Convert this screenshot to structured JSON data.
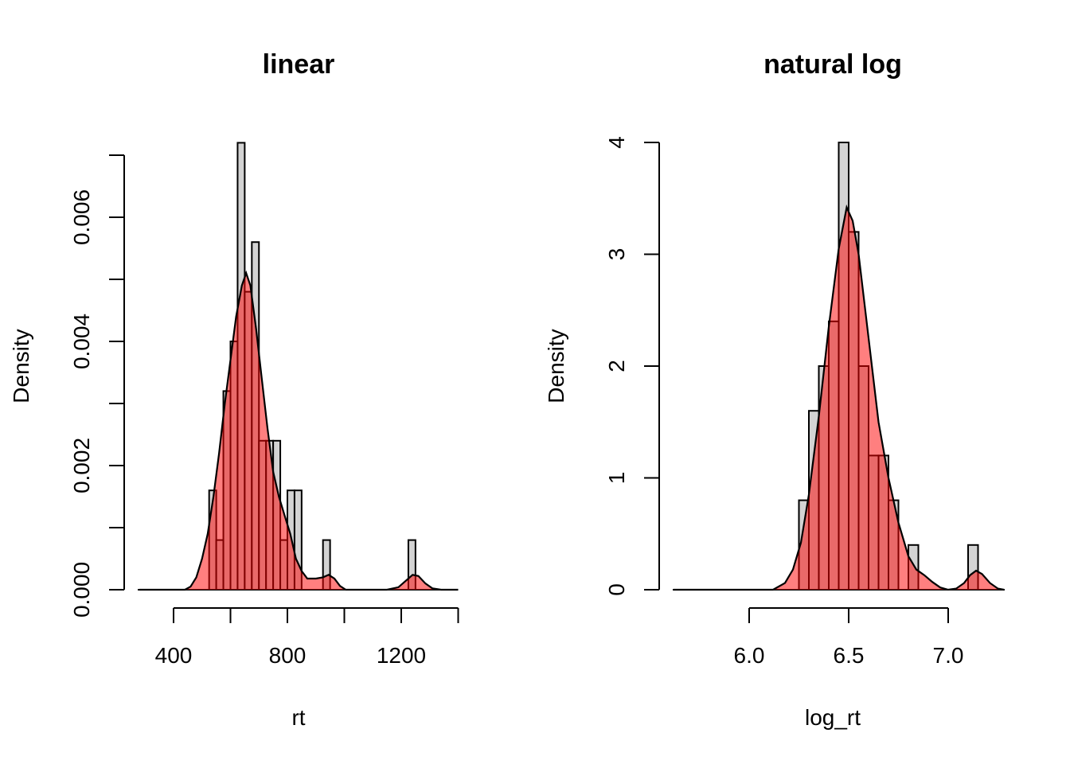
{
  "chart_data": [
    {
      "type": "bar",
      "subtype": "histogram-with-density",
      "title": "linear",
      "xlabel": "rt",
      "ylabel": "Density",
      "x_ticks": [
        400,
        600,
        800,
        1000,
        1200,
        1400
      ],
      "x_tick_labels": [
        "400",
        "800",
        "1200"
      ],
      "x_tick_label_values": [
        400,
        800,
        1200
      ],
      "y_ticks": [
        0,
        0.001,
        0.002,
        0.003,
        0.004,
        0.005,
        0.006,
        0.007
      ],
      "y_tick_labels": [
        "0.000",
        "0.002",
        "0.004",
        "0.006"
      ],
      "y_tick_label_values": [
        0,
        0.002,
        0.004,
        0.006
      ],
      "bin_width": 25,
      "bins": [
        {
          "start": 525,
          "density": 0.0016
        },
        {
          "start": 550,
          "density": 0.0008
        },
        {
          "start": 575,
          "density": 0.0032
        },
        {
          "start": 600,
          "density": 0.004
        },
        {
          "start": 625,
          "density": 0.0072
        },
        {
          "start": 650,
          "density": 0.0048
        },
        {
          "start": 675,
          "density": 0.0056
        },
        {
          "start": 700,
          "density": 0.0024
        },
        {
          "start": 725,
          "density": 0.0024
        },
        {
          "start": 750,
          "density": 0.0024
        },
        {
          "start": 775,
          "density": 0.0008
        },
        {
          "start": 800,
          "density": 0.0016
        },
        {
          "start": 825,
          "density": 0.0016
        },
        {
          "start": 925,
          "density": 0.0008
        },
        {
          "start": 1225,
          "density": 0.0008
        }
      ],
      "density_curve": {
        "x": [
          280,
          440,
          460,
          480,
          500,
          520,
          540,
          560,
          580,
          600,
          620,
          640,
          655,
          670,
          690,
          710,
          730,
          750,
          770,
          790,
          810,
          830,
          850,
          870,
          900,
          925,
          945,
          965,
          985,
          1005,
          1150,
          1190,
          1215,
          1240,
          1260,
          1285,
          1310,
          1340,
          1400
        ],
        "y": [
          0,
          0,
          5e-05,
          0.0002,
          0.0005,
          0.0009,
          0.0015,
          0.0022,
          0.003,
          0.0037,
          0.0044,
          0.0049,
          0.0051,
          0.0049,
          0.0042,
          0.0034,
          0.0026,
          0.0019,
          0.0015,
          0.0012,
          0.0009,
          0.0005,
          0.0003,
          0.00018,
          0.00018,
          0.0002,
          0.00024,
          0.00018,
          6e-05,
          0.0,
          0.0,
          4e-05,
          0.00014,
          0.00024,
          0.00022,
          0.0001,
          2e-05,
          0,
          0
        ]
      },
      "colors": {
        "bar": "#d3d3d3",
        "density_fill": "#ff0000",
        "density_fill_alpha": 0.5,
        "line": "#000000"
      }
    },
    {
      "type": "bar",
      "subtype": "histogram-with-density",
      "title": "natural log",
      "xlabel": "log_rt",
      "ylabel": "Density",
      "x_ticks": [
        6.0,
        6.5,
        7.0
      ],
      "x_tick_labels": [
        "6.0",
        "6.5",
        "7.0"
      ],
      "x_tick_label_values": [
        6.0,
        6.5,
        7.0
      ],
      "y_ticks": [
        0,
        1,
        2,
        3,
        4
      ],
      "y_tick_labels": [
        "0",
        "1",
        "2",
        "3",
        "4"
      ],
      "y_tick_label_values": [
        0,
        1,
        2,
        3,
        4
      ],
      "bin_width": 0.05,
      "bins": [
        {
          "start": 6.25,
          "density": 0.8
        },
        {
          "start": 6.3,
          "density": 1.6
        },
        {
          "start": 6.35,
          "density": 2.0
        },
        {
          "start": 6.4,
          "density": 2.4
        },
        {
          "start": 6.45,
          "density": 4.0
        },
        {
          "start": 6.5,
          "density": 3.2
        },
        {
          "start": 6.55,
          "density": 2.0
        },
        {
          "start": 6.6,
          "density": 1.2
        },
        {
          "start": 6.65,
          "density": 1.2
        },
        {
          "start": 6.7,
          "density": 0.8
        },
        {
          "start": 6.8,
          "density": 0.4
        },
        {
          "start": 7.1,
          "density": 0.4
        }
      ],
      "density_curve": {
        "x": [
          5.62,
          6.12,
          6.18,
          6.22,
          6.26,
          6.3,
          6.35,
          6.4,
          6.45,
          6.49,
          6.52,
          6.55,
          6.6,
          6.65,
          6.7,
          6.75,
          6.8,
          6.84,
          6.88,
          6.92,
          6.96,
          7.0,
          7.04,
          7.08,
          7.11,
          7.14,
          7.17,
          7.21,
          7.25,
          7.28
        ],
        "y": [
          0,
          0,
          0.06,
          0.18,
          0.42,
          0.85,
          1.55,
          2.35,
          3.05,
          3.42,
          3.3,
          3.0,
          2.25,
          1.5,
          1.0,
          0.6,
          0.3,
          0.18,
          0.13,
          0.07,
          0.02,
          0.0,
          0.01,
          0.06,
          0.13,
          0.17,
          0.14,
          0.06,
          0.01,
          0
        ]
      },
      "colors": {
        "bar": "#d3d3d3",
        "density_fill": "#ff0000",
        "density_fill_alpha": 0.5,
        "line": "#000000"
      }
    }
  ]
}
